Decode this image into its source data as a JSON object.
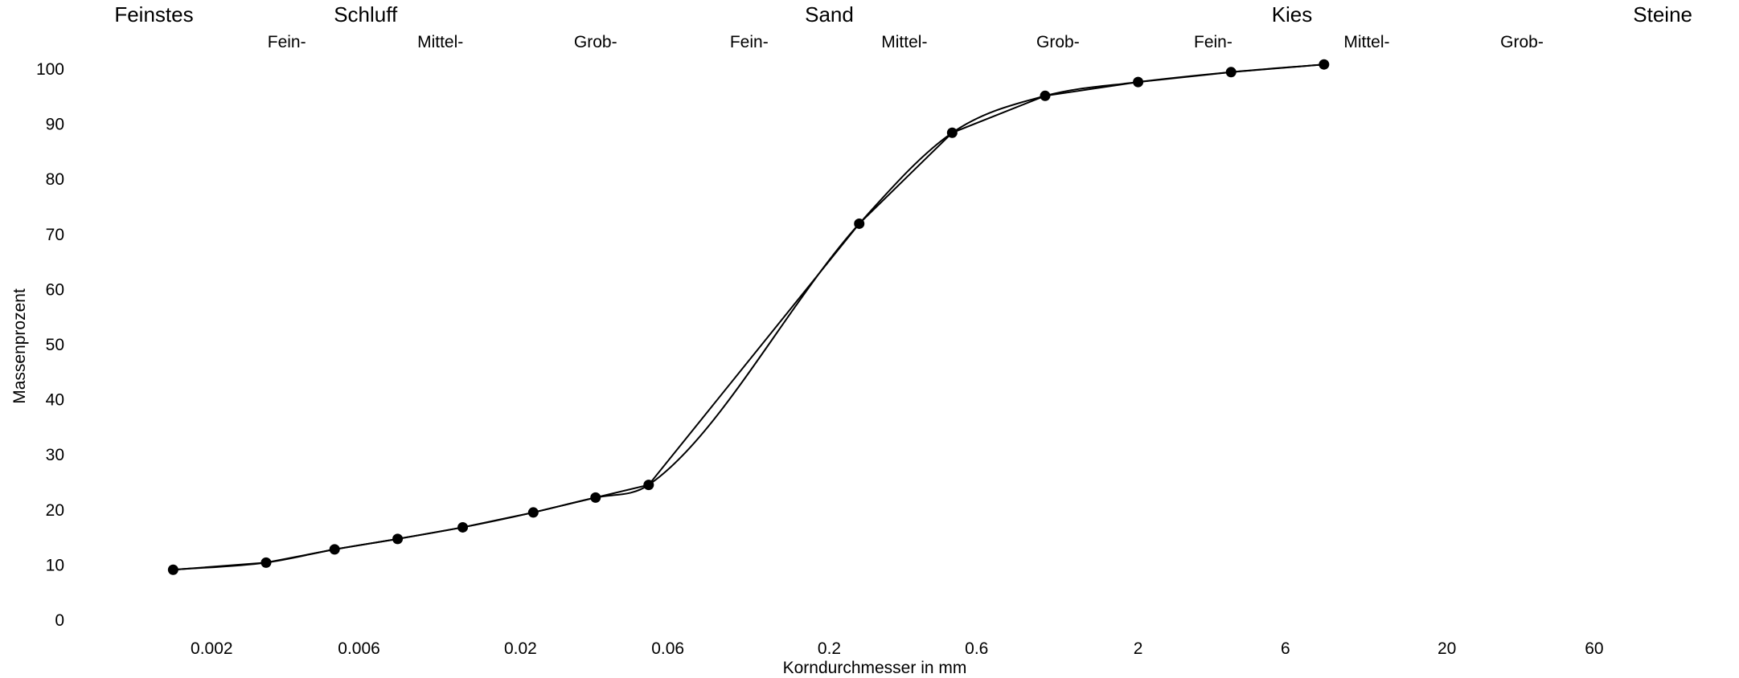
{
  "chart_data": {
    "type": "line",
    "title": "",
    "xlabel": "Korndurchmesser in mm",
    "ylabel": "Massenprozent",
    "x_scale": "log",
    "xlim": [
      0.00107,
      114
    ],
    "ylim": [
      0,
      100
    ],
    "x_ticks": [
      0.002,
      0.006,
      0.02,
      0.06,
      0.2,
      0.6,
      2,
      6,
      20,
      60
    ],
    "x_tick_labels": [
      "0.002",
      "0.006",
      "0.02",
      "0.06",
      "0.2",
      "0.6",
      "2",
      "6",
      "20",
      "60"
    ],
    "y_ticks": [
      0,
      10,
      20,
      30,
      40,
      50,
      60,
      70,
      80,
      90,
      100
    ],
    "y_tick_labels": [
      "0",
      "10",
      "20",
      "30",
      "40",
      "50",
      "60",
      "70",
      "80",
      "90",
      "100"
    ],
    "grid": false,
    "legend": "none",
    "series": [
      {
        "style": "straight-segments-with-markers",
        "x": [
          0.0015,
          0.003,
          0.005,
          0.008,
          0.013,
          0.022,
          0.035,
          0.052,
          0.25,
          0.5,
          1.0,
          2.0,
          4.0,
          8.0
        ],
        "y": [
          9,
          10.3,
          12.7,
          14.6,
          16.7,
          19.4,
          22.1,
          24.4,
          71.8,
          88.3,
          95,
          97.5,
          99.3,
          100.7
        ]
      },
      {
        "style": "smooth-curve",
        "x": [
          0.0015,
          0.003,
          0.005,
          0.008,
          0.013,
          0.022,
          0.035,
          0.052,
          0.25,
          0.5,
          1.0,
          2.0,
          4.0,
          8.0
        ],
        "y": [
          9,
          10.3,
          12.7,
          14.6,
          16.7,
          19.4,
          22.1,
          24.4,
          71.8,
          88.3,
          95,
          97.5,
          99.3,
          100.7
        ]
      }
    ]
  },
  "classification": {
    "main": [
      {
        "label": "Feinstes",
        "x": 0.0013
      },
      {
        "label": "Schluff",
        "x": 0.0063
      },
      {
        "label": "Sand",
        "x": 0.2
      },
      {
        "label": "Kies",
        "x": 6.3
      },
      {
        "label": "Steine",
        "x": 100
      }
    ],
    "sub": [
      {
        "label": "Fein-",
        "x": 0.0035
      },
      {
        "label": "Mittel-",
        "x": 0.011
      },
      {
        "label": "Grob-",
        "x": 0.035
      },
      {
        "label": "Fein-",
        "x": 0.11
      },
      {
        "label": "Mittel-",
        "x": 0.35
      },
      {
        "label": "Grob-",
        "x": 1.1
      },
      {
        "label": "Fein-",
        "x": 3.5
      },
      {
        "label": "Mittel-",
        "x": 11
      },
      {
        "label": "Grob-",
        "x": 35
      }
    ]
  }
}
